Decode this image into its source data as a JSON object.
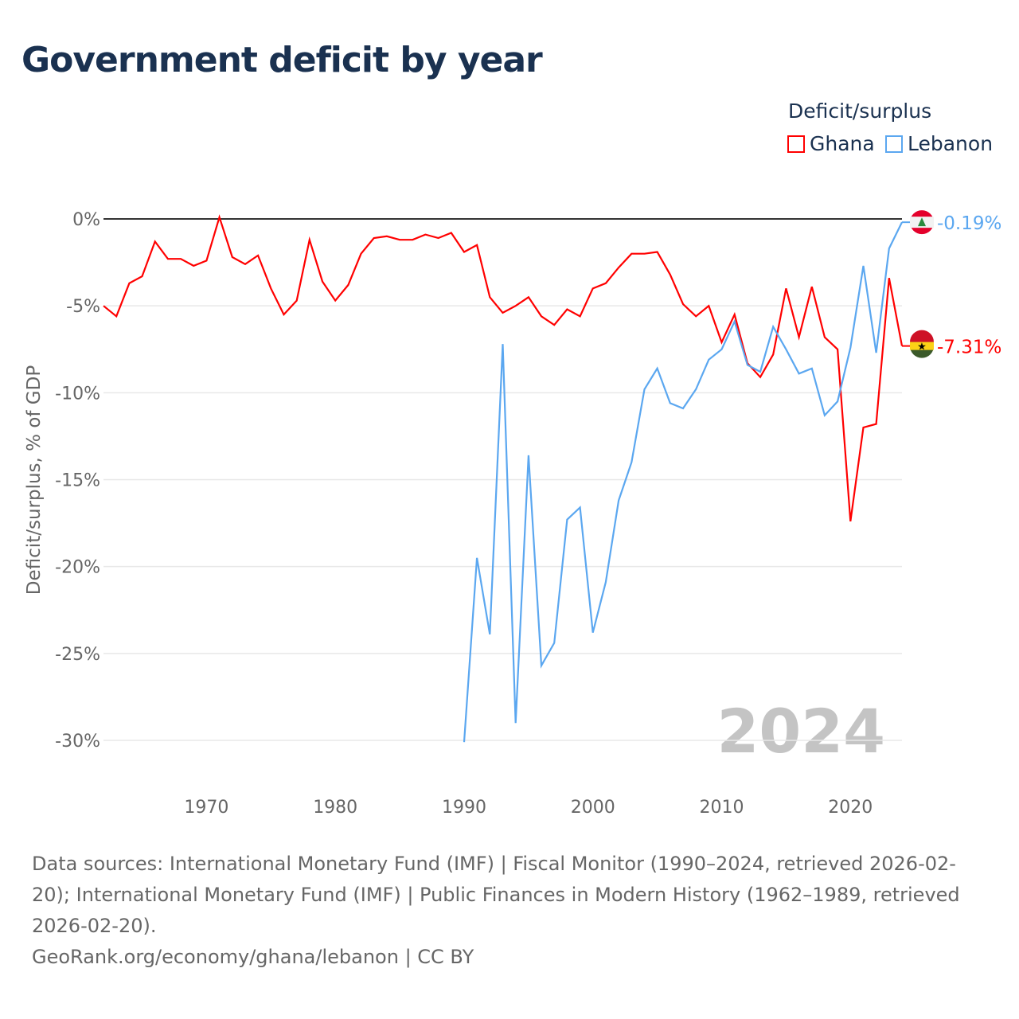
{
  "title": "Government deficit by year",
  "legend": {
    "title": "Deficit/surplus",
    "items": [
      {
        "name": "Ghana",
        "color": "#ff0000"
      },
      {
        "name": "Lebanon",
        "color": "#5ba7f0"
      }
    ]
  },
  "chart_data": {
    "type": "line",
    "title": "Government deficit by year",
    "ylabel": "Deficit/surplus, % of GDP",
    "xlabel": "",
    "ylim": [
      -30,
      0
    ],
    "xlim": [
      1962,
      2024
    ],
    "yticks": [
      0,
      -5,
      -10,
      -15,
      -20,
      -25,
      -30
    ],
    "ytick_labels": [
      "0%",
      "-5%",
      "-10%",
      "-15%",
      "-20%",
      "-25%",
      "-30%"
    ],
    "xticks": [
      "1970",
      "1980",
      "1990",
      "2000",
      "2010",
      "2020"
    ],
    "year_watermark": "2024",
    "grid": true,
    "legend_position": "top-right",
    "series": [
      {
        "name": "Ghana",
        "color": "#ff0000",
        "end_label": "-7.31%",
        "start_year": 1962,
        "values": [
          -5.0,
          -5.6,
          -3.7,
          -3.3,
          -1.3,
          -2.3,
          -2.3,
          -2.7,
          -2.4,
          0.1,
          -2.2,
          -2.6,
          -2.1,
          -4.0,
          -5.5,
          -4.7,
          -1.2,
          -3.6,
          -4.7,
          -3.8,
          -2.0,
          -1.1,
          -1.0,
          -1.2,
          -1.2,
          -0.9,
          -1.1,
          -0.8,
          -1.9,
          -1.5,
          -4.5,
          -5.4,
          -5.0,
          -4.5,
          -5.6,
          -6.1,
          -5.2,
          -5.6,
          -4.0,
          -3.7,
          -2.8,
          -2.0,
          -2.0,
          -1.9,
          -3.2,
          -4.9,
          -5.6,
          -5.0,
          -7.1,
          -5.5,
          -8.3,
          -9.1,
          -7.8,
          -4.0,
          -6.8,
          -3.9,
          -6.8,
          -7.5,
          -17.4,
          -12.0,
          -11.8,
          -3.4,
          -7.31
        ]
      },
      {
        "name": "Lebanon",
        "color": "#5ba7f0",
        "end_label": "-0.19%",
        "start_year": 1990,
        "values": [
          -30.1,
          -19.5,
          -23.9,
          -7.2,
          -29.0,
          -13.6,
          -25.7,
          -24.4,
          -17.3,
          -16.6,
          -23.8,
          -20.9,
          -16.2,
          -14.0,
          -9.8,
          -8.6,
          -10.6,
          -10.9,
          -9.8,
          -8.1,
          -7.5,
          -5.9,
          -8.4,
          -8.8,
          -6.2,
          -7.5,
          -8.9,
          -8.6,
          -11.3,
          -10.5,
          -7.4,
          -2.7,
          -7.7,
          -1.7,
          -0.19
        ]
      }
    ]
  },
  "footer": {
    "sources": "Data sources: International Monetary Fund (IMF) | Fiscal Monitor (1990–2024, retrieved 2026-02-20); International Monetary Fund (IMF) | Public Finances in Modern History (1962–1989, retrieved 2026-02-20).",
    "credit": "GeoRank.org/economy/ghana/lebanon | CC BY"
  }
}
